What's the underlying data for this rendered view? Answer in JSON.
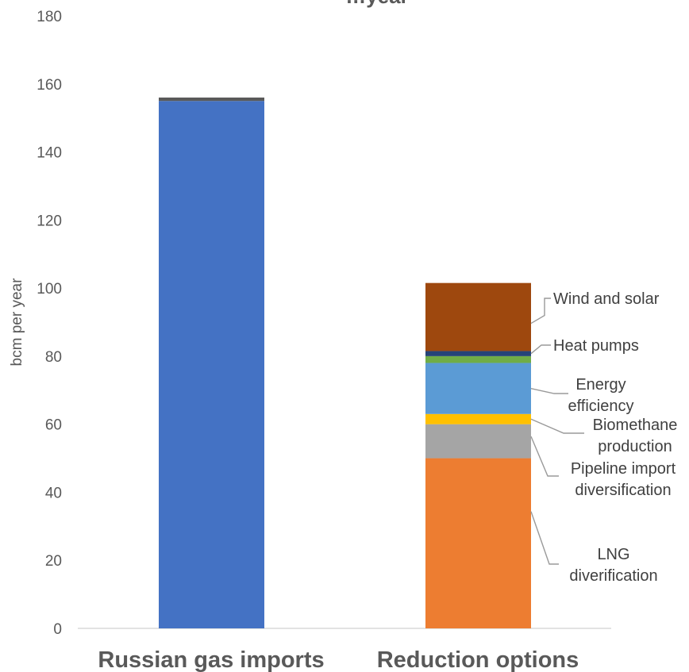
{
  "chart_data": {
    "type": "bar",
    "stacked": true,
    "title": "",
    "title_partial": "…year",
    "xlabel": "",
    "ylabel": "bcm per year",
    "ylim": [
      0,
      180
    ],
    "yticks": [
      0,
      20,
      40,
      60,
      80,
      100,
      120,
      140,
      160,
      180
    ],
    "grid": false,
    "categories": [
      "Russian gas imports",
      "Reduction options"
    ],
    "series": [
      {
        "name": "",
        "color": "#4472C4",
        "values": [
          155,
          0
        ]
      },
      {
        "name": "",
        "color": "#595959",
        "values": [
          1,
          0
        ]
      },
      {
        "name": "LNG diverification",
        "color": "#ED7D31",
        "values": [
          0,
          50
        ]
      },
      {
        "name": "Pipeline import diversification",
        "color": "#A5A5A5",
        "values": [
          0,
          10
        ]
      },
      {
        "name": "Biomethane production",
        "color": "#FFC000",
        "values": [
          0,
          3
        ]
      },
      {
        "name": "Energy efficiency",
        "color": "#5B9BD5",
        "values": [
          0,
          15
        ]
      },
      {
        "name": "",
        "color": "#70AD47",
        "values": [
          0,
          2
        ]
      },
      {
        "name": "Heat pumps",
        "color": "#264478",
        "values": [
          0,
          1.5
        ]
      },
      {
        "name": "Wind and solar",
        "color": "#9E480E",
        "values": [
          0,
          20
        ]
      }
    ],
    "annotations": [
      {
        "lines": [
          "Wind and solar"
        ],
        "series": "Wind and solar"
      },
      {
        "lines": [
          "Heat pumps"
        ],
        "series": "Heat pumps"
      },
      {
        "lines": [
          "Energy",
          "efficiency"
        ],
        "series": "Energy efficiency"
      },
      {
        "lines": [
          "Biomethane",
          "production"
        ],
        "series": "Biomethane production"
      },
      {
        "lines": [
          "Pipeline import",
          "diversification"
        ],
        "series": "Pipeline import diversification"
      },
      {
        "lines": [
          "LNG",
          "diverification"
        ],
        "series": "LNG diverification"
      }
    ]
  }
}
